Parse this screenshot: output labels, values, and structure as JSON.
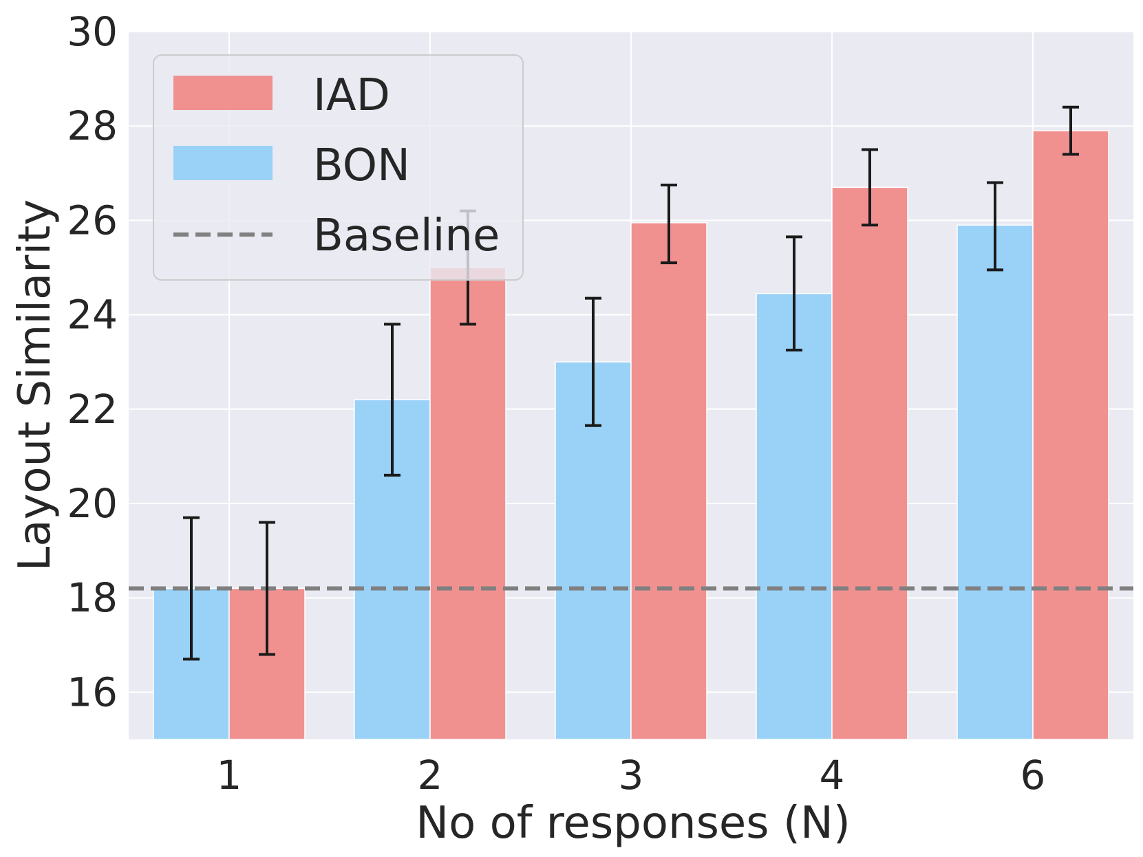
{
  "chart_data": {
    "type": "bar",
    "xlabel": "No of responses (N)",
    "ylabel": "Layout Similarity",
    "ylim": [
      15,
      30
    ],
    "yticks": [
      16,
      18,
      20,
      22,
      24,
      26,
      28,
      30
    ],
    "categories": [
      "1",
      "2",
      "3",
      "4",
      "6"
    ],
    "series": [
      {
        "name": "BON",
        "color": "#99d1f7",
        "values": [
          18.2,
          22.2,
          23.0,
          24.45,
          25.9
        ],
        "err_low": [
          16.7,
          20.6,
          21.65,
          23.25,
          24.95
        ],
        "err_high": [
          19.7,
          23.8,
          24.35,
          25.65,
          26.8
        ]
      },
      {
        "name": "IAD",
        "color": "#f09190",
        "values": [
          18.2,
          25.0,
          25.95,
          26.7,
          27.9
        ],
        "err_low": [
          16.8,
          23.8,
          25.1,
          25.9,
          27.4
        ],
        "err_high": [
          19.6,
          26.2,
          26.75,
          27.5,
          28.4
        ]
      }
    ],
    "baseline": {
      "name": "Baseline",
      "value": 18.2,
      "color": "#808080"
    },
    "legend_position": "top-left",
    "grid": true,
    "background": "#eaeaf2"
  }
}
